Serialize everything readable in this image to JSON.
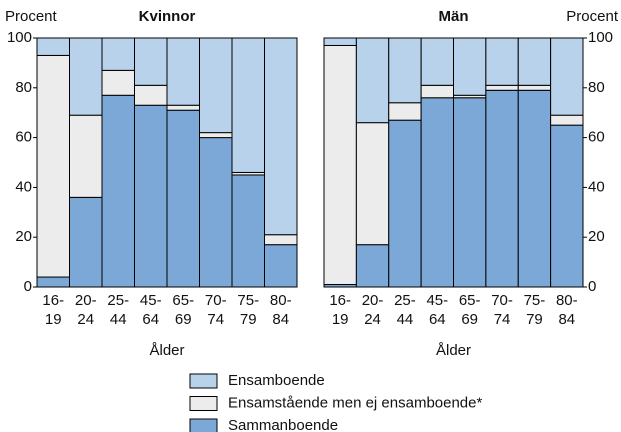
{
  "chart_data": [
    {
      "type": "stacked-bar",
      "title": "Kvinnor",
      "y_label": "Procent",
      "x_label": "Ålder",
      "axis_side": "left",
      "categories": [
        "16-19",
        "20-24",
        "25-44",
        "45-64",
        "65-69",
        "70-74",
        "75-79",
        "80-84"
      ],
      "ylim": [
        0,
        100
      ],
      "yticks": [
        0,
        20,
        40,
        60,
        80,
        100
      ],
      "series": [
        {
          "values": [
            4,
            36,
            77,
            73,
            71,
            60,
            45,
            17
          ]
        },
        {
          "values": [
            89,
            33,
            10,
            8,
            2,
            2,
            1,
            4
          ]
        },
        {
          "values": [
            7,
            31,
            13,
            19,
            27,
            38,
            54,
            79
          ]
        }
      ]
    },
    {
      "type": "stacked-bar",
      "title": "Män",
      "y_label": "Procent",
      "x_label": "Ålder",
      "axis_side": "right",
      "categories": [
        "16-19",
        "20-24",
        "25-44",
        "45-64",
        "65-69",
        "70-74",
        "75-79",
        "80-84"
      ],
      "ylim": [
        0,
        100
      ],
      "yticks": [
        0,
        20,
        40,
        60,
        80,
        100
      ],
      "series": [
        {
          "values": [
            1,
            17,
            67,
            76,
            76,
            79,
            79,
            65
          ]
        },
        {
          "values": [
            96,
            49,
            7,
            5,
            1,
            2,
            2,
            4
          ]
        },
        {
          "values": [
            3,
            34,
            26,
            19,
            23,
            19,
            19,
            31
          ]
        }
      ]
    }
  ],
  "legend": [
    {
      "name": "Ensamboende",
      "color": "#b9d2ec"
    },
    {
      "name": "Ensamstående men ej ensamboende*",
      "color": "#ececec"
    },
    {
      "name": "Sammanboende",
      "color": "#7ba8d6"
    }
  ]
}
